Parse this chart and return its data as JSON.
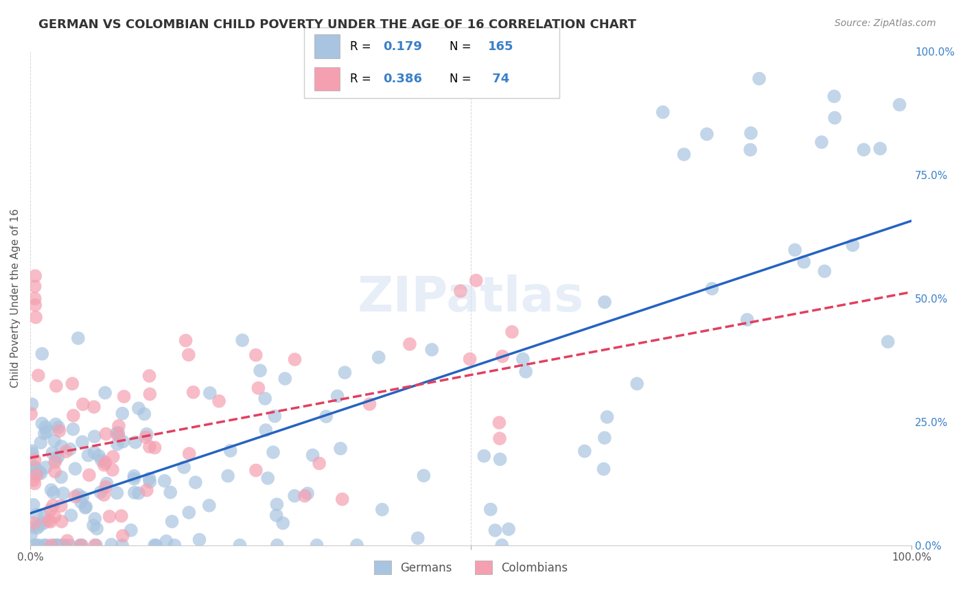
{
  "title": "GERMAN VS COLOMBIAN CHILD POVERTY UNDER THE AGE OF 16 CORRELATION CHART",
  "source": "Source: ZipAtlas.com",
  "ylabel": "Child Poverty Under the Age of 16",
  "german_R": 0.179,
  "german_N": 165,
  "colombian_R": 0.386,
  "colombian_N": 74,
  "german_color": "#a8c4e0",
  "colombian_color": "#f4a0b0",
  "german_line_color": "#2563c0",
  "colombian_line_color": "#e04060",
  "xlim": [
    0,
    1
  ],
  "ylim": [
    0,
    1
  ],
  "watermark": "ZIPatlas",
  "background_color": "#ffffff",
  "grid_color": "#cccccc",
  "legend_label_german": "Germans",
  "legend_label_colombian": "Colombians",
  "title_fontsize": 13,
  "axis_label_fontsize": 11,
  "tick_fontsize": 11,
  "source_fontsize": 10
}
